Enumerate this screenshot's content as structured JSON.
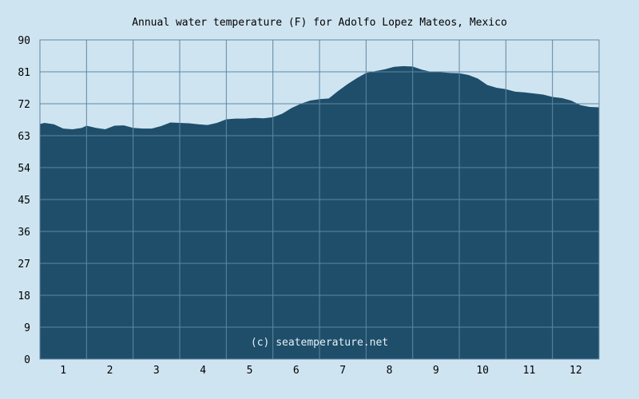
{
  "chart_data": {
    "type": "area",
    "title": "Annual water temperature (F) for Adolfo Lopez Mateos, Mexico",
    "xlabel": "",
    "ylabel": "",
    "credit": "(c) seatemperature.net",
    "x_ticks": [
      "1",
      "2",
      "3",
      "4",
      "5",
      "6",
      "7",
      "8",
      "9",
      "10",
      "11",
      "12"
    ],
    "y_ticks": [
      "0",
      "9",
      "18",
      "27",
      "36",
      "45",
      "54",
      "63",
      "72",
      "81",
      "90"
    ],
    "xlim": [
      0.5,
      12.5
    ],
    "ylim": [
      0,
      90
    ],
    "grid": true,
    "colors": {
      "fill": "#1f4e6b",
      "background": "#cfe4f1",
      "grid": "#5f87a2"
    },
    "series": [
      {
        "x": [
          0.5,
          0.6,
          0.8,
          1.0,
          1.2,
          1.4,
          1.5,
          1.7,
          1.9,
          2.1,
          2.3,
          2.5,
          2.7,
          2.9,
          3.1,
          3.3,
          3.5,
          3.7,
          3.9,
          4.1,
          4.3,
          4.5,
          4.7,
          4.9,
          5.1,
          5.3,
          5.5,
          5.7,
          5.9,
          6.1,
          6.3,
          6.5,
          6.7,
          6.9,
          7.1,
          7.3,
          7.5,
          7.7,
          7.9,
          8.1,
          8.3,
          8.5,
          8.7,
          8.9,
          9.1,
          9.3,
          9.5,
          9.7,
          9.9,
          10.1,
          10.3,
          10.5,
          10.7,
          10.9,
          11.1,
          11.3,
          11.5,
          11.7,
          11.9,
          12.1,
          12.3,
          12.5
        ],
        "values": [
          66.3,
          66.6,
          66.2,
          65.0,
          64.8,
          65.2,
          65.8,
          65.2,
          64.8,
          65.8,
          65.9,
          65.2,
          65.0,
          65.0,
          65.7,
          66.7,
          66.6,
          66.5,
          66.2,
          66.0,
          66.6,
          67.6,
          67.8,
          67.8,
          68.0,
          67.9,
          68.2,
          69.2,
          70.8,
          72.0,
          72.9,
          73.3,
          73.5,
          75.6,
          77.5,
          79.2,
          80.7,
          81.2,
          81.7,
          82.4,
          82.6,
          82.5,
          81.6,
          81.0,
          80.9,
          80.7,
          80.6,
          80.1,
          79.1,
          77.3,
          76.5,
          76.1,
          75.4,
          75.2,
          74.9,
          74.6,
          73.9,
          73.6,
          72.9,
          71.6,
          71.1,
          71.0
        ]
      }
    ]
  }
}
